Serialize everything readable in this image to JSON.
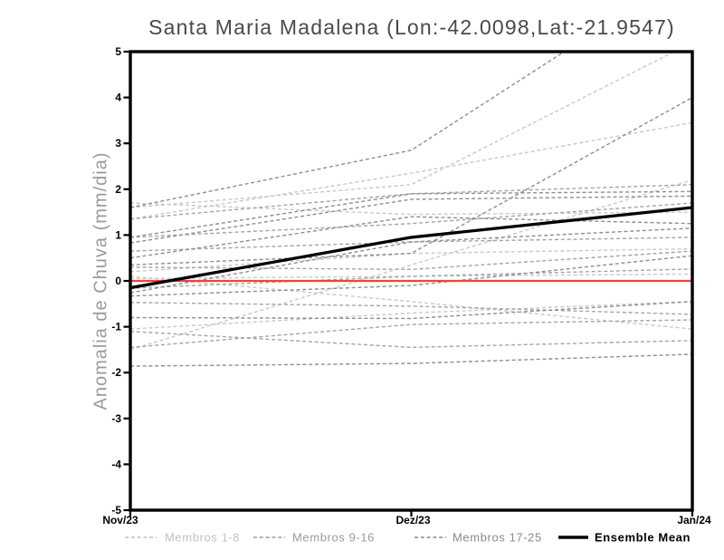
{
  "title": "Santa Maria Madalena (Lon:-42.0098,Lat:-21.9547)",
  "chart_data": {
    "type": "line",
    "title": "Santa Maria Madalena (Lon:-42.0098,Lat:-21.9547)",
    "xlabel": "",
    "ylabel": "Anomalia de Chuva (mm/dia)",
    "x_categories": [
      "Nov/23",
      "Dez/23",
      "Jan/24"
    ],
    "ylim": [
      -5,
      5
    ],
    "yticks": [
      5,
      4,
      3,
      2,
      1,
      0,
      -1,
      -2,
      -3,
      -4,
      -5
    ],
    "grid": false,
    "legend_position": "bottom",
    "zero_line": {
      "name": "zero-anomaly-line",
      "color": "#f24141",
      "values": [
        0,
        0,
        0
      ]
    },
    "ensemble_mean": {
      "name": "Ensemble Mean",
      "color": "#000000",
      "values": [
        -0.15,
        0.95,
        1.6
      ]
    },
    "member_groups": [
      {
        "label": "Membros 1-8",
        "color": "#c9c9c9",
        "series": [
          [
            1.6,
            2.1,
            5.2
          ],
          [
            1.35,
            2.35,
            3.45
          ],
          [
            -1.5,
            0.35,
            2.2
          ],
          [
            1.7,
            1.45,
            1.5
          ],
          [
            0.2,
            0.6,
            0.7
          ],
          [
            0.05,
            0.1,
            0.15
          ],
          [
            0.1,
            -0.45,
            -1.05
          ],
          [
            -1.05,
            -0.7,
            -0.45
          ]
        ]
      },
      {
        "label": "Membros 9-16",
        "color": "#a4a4a4",
        "series": [
          [
            1.35,
            1.9,
            2.1
          ],
          [
            0.95,
            1.25,
            1.7
          ],
          [
            0.65,
            0.85,
            0.95
          ],
          [
            0.3,
            0.25,
            0.65
          ],
          [
            -0.16,
            0.1,
            0.26
          ],
          [
            -0.47,
            -0.55,
            -0.73
          ],
          [
            -1.45,
            -0.95,
            -0.85
          ],
          [
            -1.1,
            -1.45,
            -1.3
          ]
        ]
      },
      {
        "label": "Membros 17-25",
        "color": "#8e8e8e",
        "series": [
          [
            0.35,
            0.6,
            4.0
          ],
          [
            1.6,
            2.85,
            6.8
          ],
          [
            0.95,
            1.9,
            1.95
          ],
          [
            0.83,
            1.78,
            1.85
          ],
          [
            0.5,
            1.4,
            1.25
          ],
          [
            -0.26,
            0.85,
            1.15
          ],
          [
            -0.33,
            -0.1,
            0.55
          ],
          [
            -0.8,
            -0.82,
            -0.45
          ],
          [
            -1.86,
            -1.8,
            -1.6
          ]
        ]
      }
    ],
    "legend": [
      {
        "label": "Membros 1-8",
        "color": "#c2c2c2",
        "style": "dashed"
      },
      {
        "label": "Membros 9-16",
        "color": "#9c9c9c",
        "style": "dashed"
      },
      {
        "label": "Membros 17-25",
        "color": "#8a8a8a",
        "style": "dashed"
      },
      {
        "label": "Ensemble Mean",
        "color": "#000000",
        "style": "solid"
      }
    ]
  },
  "colors": {
    "background": "#ffffff",
    "frame": "#000000",
    "axis_text": "#000000",
    "y_axis_title": "#9a9a9a",
    "title_text": "#4a4a4a",
    "zero_line": "#f24141"
  }
}
